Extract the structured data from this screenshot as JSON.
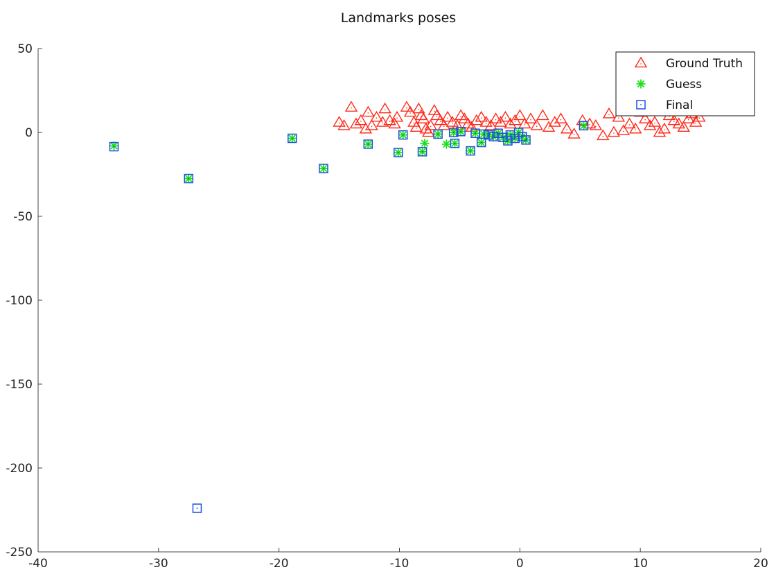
{
  "chart_data": {
    "type": "scatter",
    "title": "Landmarks poses",
    "xlabel": "",
    "ylabel": "",
    "xlim": [
      -40,
      20
    ],
    "ylim": [
      -250,
      50
    ],
    "xticks": [
      -40,
      -30,
      -20,
      -10,
      0,
      10,
      20
    ],
    "yticks": [
      -250,
      -200,
      -150,
      -100,
      -50,
      0,
      50
    ],
    "grid": false,
    "legend_position": "top-right",
    "series": [
      {
        "name": "Ground Truth",
        "marker": "triangle",
        "color": "#ff2a1a",
        "points": [
          [
            -15,
            6
          ],
          [
            -14.6,
            4
          ],
          [
            -14,
            15
          ],
          [
            -13.6,
            5
          ],
          [
            -13.2,
            7
          ],
          [
            -12.8,
            2
          ],
          [
            -12.6,
            12
          ],
          [
            -12.3,
            4
          ],
          [
            -11.9,
            9
          ],
          [
            -11.4,
            6
          ],
          [
            -11.2,
            14
          ],
          [
            -10.8,
            7
          ],
          [
            -10.4,
            5
          ],
          [
            -10.2,
            9
          ],
          [
            -9.4,
            15
          ],
          [
            -9.1,
            12
          ],
          [
            -8.8,
            6
          ],
          [
            -8.6,
            3
          ],
          [
            -8.4,
            14
          ],
          [
            -8.2,
            10
          ],
          [
            -8.0,
            8
          ],
          [
            -7.8,
            2
          ],
          [
            -7.6,
            0
          ],
          [
            -7.4,
            4
          ],
          [
            -7.1,
            13
          ],
          [
            -6.9,
            10
          ],
          [
            -6.6,
            7
          ],
          [
            -6.3,
            4
          ],
          [
            -6.0,
            9
          ],
          [
            -5.6,
            6
          ],
          [
            -5.2,
            4
          ],
          [
            -4.9,
            10
          ],
          [
            -4.6,
            8
          ],
          [
            -4.3,
            5
          ],
          [
            -4.0,
            3
          ],
          [
            -3.6,
            7
          ],
          [
            -3.2,
            9
          ],
          [
            -2.8,
            6
          ],
          [
            -2.4,
            4
          ],
          [
            -2.0,
            8
          ],
          [
            -1.6,
            6
          ],
          [
            -1.2,
            9
          ],
          [
            -0.8,
            5
          ],
          [
            -0.4,
            7
          ],
          [
            0.0,
            10
          ],
          [
            0.4,
            5
          ],
          [
            0.9,
            8
          ],
          [
            1.4,
            4
          ],
          [
            1.9,
            10
          ],
          [
            2.4,
            3
          ],
          [
            2.9,
            6
          ],
          [
            3.4,
            8
          ],
          [
            3.9,
            2
          ],
          [
            4.5,
            -1
          ],
          [
            5.2,
            7
          ],
          [
            5.8,
            5
          ],
          [
            6.3,
            4
          ],
          [
            6.9,
            -2
          ],
          [
            7.4,
            11
          ],
          [
            7.8,
            0
          ],
          [
            8.2,
            9
          ],
          [
            8.6,
            1
          ],
          [
            9.1,
            5
          ],
          [
            9.6,
            2
          ],
          [
            10.0,
            12
          ],
          [
            10.4,
            8
          ],
          [
            10.8,
            4
          ],
          [
            11.2,
            6
          ],
          [
            11.6,
            0
          ],
          [
            12.0,
            2
          ],
          [
            12.4,
            10
          ],
          [
            12.8,
            7
          ],
          [
            13.2,
            5
          ],
          [
            13.6,
            3
          ],
          [
            14.0,
            8
          ],
          [
            14.3,
            11
          ],
          [
            14.6,
            6
          ],
          [
            14.9,
            9
          ]
        ]
      },
      {
        "name": "Guess",
        "marker": "asterisk",
        "color": "#1ee01e",
        "points": [
          [
            -33.7,
            -8
          ],
          [
            -27.5,
            -27.5
          ],
          [
            -18.9,
            -3.5
          ],
          [
            -16.3,
            -21.5
          ],
          [
            -12.6,
            -7
          ],
          [
            -10.1,
            -12
          ],
          [
            -9.7,
            -1.5
          ],
          [
            -8.1,
            -11.5
          ],
          [
            -7.9,
            -6.5
          ],
          [
            -6.8,
            -1
          ],
          [
            -6.1,
            -7
          ],
          [
            -5.4,
            -6.5
          ],
          [
            -5.5,
            0
          ],
          [
            -4.9,
            0.5
          ],
          [
            -4.1,
            -11
          ],
          [
            -3.7,
            -0.5
          ],
          [
            -3.2,
            -6
          ],
          [
            -3.0,
            -1
          ],
          [
            -2.6,
            -1.5
          ],
          [
            -2.2,
            -2.5
          ],
          [
            -1.8,
            -0.5
          ],
          [
            -1.4,
            -3
          ],
          [
            -1.0,
            -5
          ],
          [
            -0.8,
            -1.5
          ],
          [
            -0.4,
            -3.5
          ],
          [
            -0.1,
            0
          ],
          [
            0.2,
            -2.5
          ],
          [
            0.5,
            -4.5
          ],
          [
            5.3,
            4
          ]
        ]
      },
      {
        "name": "Final",
        "marker": "square",
        "color": "#1e4fe0",
        "points": [
          [
            -33.7,
            -8.5
          ],
          [
            -27.5,
            -27.5
          ],
          [
            -26.8,
            -224
          ],
          [
            -18.9,
            -3.5
          ],
          [
            -16.3,
            -21.5
          ],
          [
            -12.6,
            -7
          ],
          [
            -10.1,
            -12
          ],
          [
            -9.7,
            -1.5
          ],
          [
            -8.1,
            -11.5
          ],
          [
            -6.8,
            -1
          ],
          [
            -5.4,
            -6.5
          ],
          [
            -5.5,
            0
          ],
          [
            -4.9,
            0.5
          ],
          [
            -4.1,
            -11
          ],
          [
            -3.7,
            -0.5
          ],
          [
            -3.2,
            -6
          ],
          [
            -3.0,
            -1
          ],
          [
            -2.6,
            -1.5
          ],
          [
            -2.2,
            -2.5
          ],
          [
            -1.8,
            -0.5
          ],
          [
            -1.4,
            -3
          ],
          [
            -1.0,
            -5
          ],
          [
            -0.8,
            -1.5
          ],
          [
            -0.4,
            -3.5
          ],
          [
            -0.1,
            0
          ],
          [
            0.2,
            -2.5
          ],
          [
            0.5,
            -4.5
          ],
          [
            5.3,
            4
          ]
        ]
      }
    ]
  }
}
